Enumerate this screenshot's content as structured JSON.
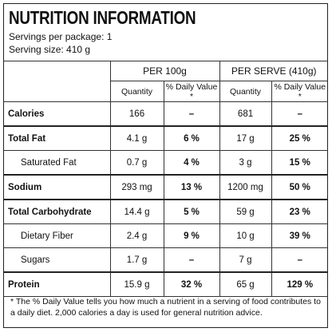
{
  "header": {
    "title": "NUTRITION INFORMATION",
    "servings": "Servings per package: 1",
    "serving_size": "Serving size: 410 g"
  },
  "table": {
    "groups": [
      "PER 100g",
      "PER SERVE (410g)"
    ],
    "columns": [
      "Quantity",
      "% Daily Value *",
      "Quantity",
      "% Daily Value *"
    ],
    "rows": [
      [
        "Calories",
        "166",
        "–",
        "681",
        "–"
      ],
      [
        "Total Fat",
        "4.1 g",
        "6 %",
        "17 g",
        "25 %"
      ],
      [
        "Saturated Fat",
        "0.7 g",
        "4 %",
        "3 g",
        "15 %"
      ],
      [
        "Sodium",
        "293 mg",
        "13 %",
        "1200 mg",
        "50 %"
      ],
      [
        "Total Carbohydrate",
        "14.4 g",
        "5 %",
        "59 g",
        "23 %"
      ],
      [
        "Dietary Fiber",
        "2.4 g",
        "9 %",
        "10 g",
        "39 %"
      ],
      [
        "Sugars",
        "1.7 g",
        "–",
        "7 g",
        "–"
      ],
      [
        "Protein",
        "15.9 g",
        "32 %",
        "65 g",
        "129 %"
      ]
    ]
  },
  "footnote": "* The % Daily Value tells you how much a nutrient in a serving of food contributes to a daily diet. 2,000 calories a day is used for general nutrition advice."
}
